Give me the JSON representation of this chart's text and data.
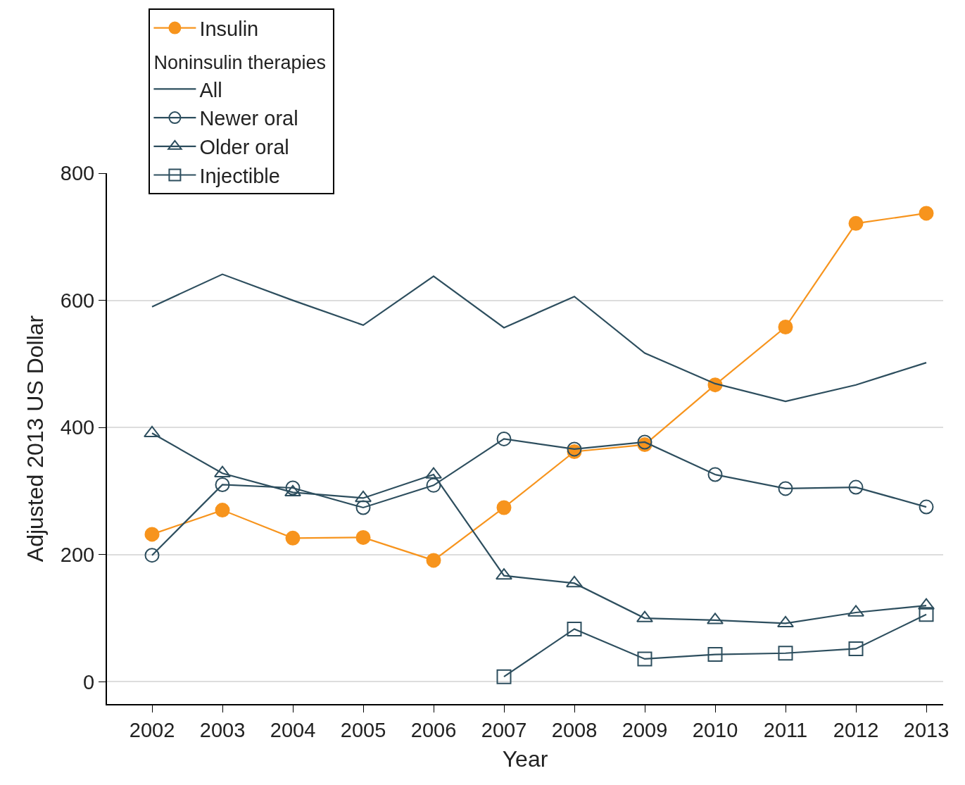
{
  "chart_data": {
    "type": "line",
    "xlabel": "Year",
    "ylabel": "Adjusted 2013 US Dollar",
    "legend_title": "Noninsulin therapies",
    "x": [
      2002,
      2003,
      2004,
      2005,
      2006,
      2007,
      2008,
      2009,
      2010,
      2011,
      2012,
      2013
    ],
    "series": [
      {
        "name": "Insulin",
        "color": "#f7941d",
        "marker": "circle",
        "values": [
          232,
          270,
          226,
          227,
          191,
          274,
          362,
          373,
          467,
          558,
          721,
          737
        ]
      },
      {
        "name": "All",
        "color": "#2d4e5e",
        "marker": "none",
        "values": [
          590,
          641,
          600,
          561,
          638,
          557,
          606,
          517,
          469,
          441,
          467,
          502
        ]
      },
      {
        "name": "Newer oral",
        "color": "#2d4e5e",
        "marker": "circle",
        "values": [
          199,
          310,
          305,
          274,
          309,
          382,
          366,
          377,
          326,
          304,
          306,
          275
        ]
      },
      {
        "name": "Older oral",
        "color": "#2d4e5e",
        "marker": "triangle",
        "values": [
          391,
          328,
          298,
          289,
          326,
          167,
          155,
          100,
          97,
          92,
          109,
          120
        ]
      },
      {
        "name": "Injectible",
        "color": "#2d4e5e",
        "marker": "square",
        "values": [
          null,
          null,
          null,
          null,
          null,
          8,
          83,
          36,
          43,
          45,
          52,
          106
        ]
      }
    ],
    "xlim": [
      2001.36,
      2013.24
    ],
    "ylim": [
      -35,
      800
    ],
    "xticks": [
      2002,
      2003,
      2004,
      2005,
      2006,
      2007,
      2008,
      2009,
      2010,
      2011,
      2012,
      2013
    ],
    "yticks": [
      0,
      200,
      400,
      600,
      800
    ],
    "grid": "y",
    "legend": "top left",
    "line_style": "solid"
  }
}
